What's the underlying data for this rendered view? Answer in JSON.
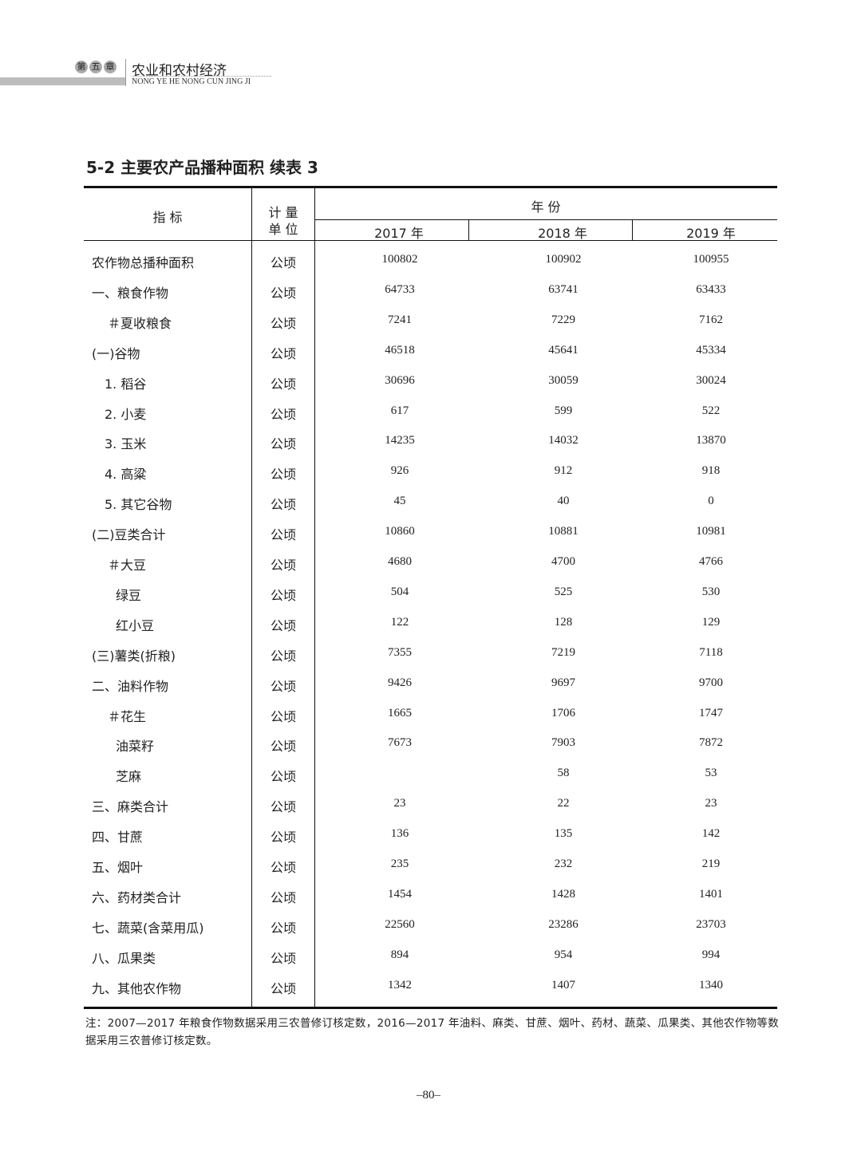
{
  "header": {
    "chapter_chars": [
      "第",
      "五",
      "章"
    ],
    "title": "农业和农村经济",
    "pinyin": "NONG YE HE NONG CUN JING JI"
  },
  "table_title": "5-2  主要农产品播种面积 续表 3",
  "columns": {
    "indicator": "指  标",
    "unit_line1": "计  量",
    "unit_line2": "单  位",
    "year_group": "年  份",
    "years": [
      "2017 年",
      "2018 年",
      "2019 年"
    ]
  },
  "rows": [
    {
      "label": "农作物总播种面积",
      "indent": 0,
      "unit": "公顷",
      "values": [
        "100802",
        "100902",
        "100955"
      ]
    },
    {
      "label": "一、粮食作物",
      "indent": 0,
      "unit": "公顷",
      "values": [
        "64733",
        "63741",
        "63433"
      ]
    },
    {
      "label": "＃夏收粮食",
      "indent": 2,
      "unit": "公顷",
      "values": [
        "7241",
        "7229",
        "7162"
      ]
    },
    {
      "label": "(一)谷物",
      "indent": 0,
      "unit": "公顷",
      "values": [
        "46518",
        "45641",
        "45334"
      ]
    },
    {
      "label": "1. 稻谷",
      "indent": 1,
      "unit": "公顷",
      "values": [
        "30696",
        "30059",
        "30024"
      ]
    },
    {
      "label": "2. 小麦",
      "indent": 1,
      "unit": "公顷",
      "values": [
        "617",
        "599",
        "522"
      ]
    },
    {
      "label": "3. 玉米",
      "indent": 1,
      "unit": "公顷",
      "values": [
        "14235",
        "14032",
        "13870"
      ]
    },
    {
      "label": "4. 高粱",
      "indent": 1,
      "unit": "公顷",
      "values": [
        "926",
        "912",
        "918"
      ]
    },
    {
      "label": "5. 其它谷物",
      "indent": 1,
      "unit": "公顷",
      "values": [
        "45",
        "40",
        "0"
      ]
    },
    {
      "label": "(二)豆类合计",
      "indent": 0,
      "unit": "公顷",
      "values": [
        "10860",
        "10881",
        "10981"
      ]
    },
    {
      "label": "＃大豆",
      "indent": 2,
      "unit": "公顷",
      "values": [
        "4680",
        "4700",
        "4766"
      ]
    },
    {
      "label": "绿豆",
      "indent": 3,
      "unit": "公顷",
      "values": [
        "504",
        "525",
        "530"
      ]
    },
    {
      "label": "红小豆",
      "indent": 3,
      "unit": "公顷",
      "values": [
        "122",
        "128",
        "129"
      ]
    },
    {
      "label": "(三)薯类(折粮)",
      "indent": 0,
      "unit": "公顷",
      "values": [
        "7355",
        "7219",
        "7118"
      ]
    },
    {
      "label": "二、油料作物",
      "indent": 0,
      "unit": "公顷",
      "values": [
        "9426",
        "9697",
        "9700"
      ]
    },
    {
      "label": "＃花生",
      "indent": 2,
      "unit": "公顷",
      "values": [
        "1665",
        "1706",
        "1747"
      ]
    },
    {
      "label": "油菜籽",
      "indent": 3,
      "unit": "公顷",
      "values": [
        "7673",
        "7903",
        "7872"
      ]
    },
    {
      "label": "芝麻",
      "indent": 3,
      "unit": "公顷",
      "values": [
        "",
        "58",
        "53"
      ]
    },
    {
      "label": "三、麻类合计",
      "indent": 0,
      "unit": "公顷",
      "values": [
        "23",
        "22",
        "23"
      ]
    },
    {
      "label": "四、甘蔗",
      "indent": 0,
      "unit": "公顷",
      "values": [
        "136",
        "135",
        "142"
      ]
    },
    {
      "label": "五、烟叶",
      "indent": 0,
      "unit": "公顷",
      "values": [
        "235",
        "232",
        "219"
      ]
    },
    {
      "label": "六、药材类合计",
      "indent": 0,
      "unit": "公顷",
      "values": [
        "1454",
        "1428",
        "1401"
      ]
    },
    {
      "label": "七、蔬菜(含菜用瓜)",
      "indent": 0,
      "unit": "公顷",
      "values": [
        "22560",
        "23286",
        "23703"
      ]
    },
    {
      "label": "八、瓜果类",
      "indent": 0,
      "unit": "公顷",
      "values": [
        "894",
        "954",
        "994"
      ]
    },
    {
      "label": "九、其他农作物",
      "indent": 0,
      "unit": "公顷",
      "values": [
        "1342",
        "1407",
        "1340"
      ]
    }
  ],
  "note": "注：2007—2017 年粮食作物数据采用三农普修订核定数，2016—2017 年油料、麻类、甘蔗、烟叶、药材、蔬菜、瓜果类、其他农作物等数据采用三农普修订核定数。",
  "page_number": "–80–"
}
